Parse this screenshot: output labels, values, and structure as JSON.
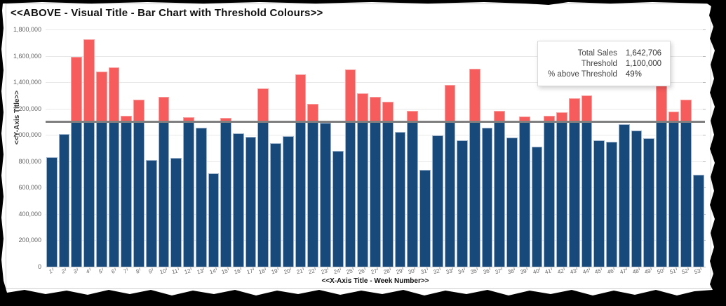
{
  "title": "<<ABOVE - Visual Title - Bar Chart with Threshold Colours>>",
  "colors": {
    "bar_below_threshold": "#17497B",
    "bar_above_threshold": "#F65C5C",
    "threshold_line": "#7F7F7F",
    "gridline": "#E8E8E8",
    "axis_text": "#666666"
  },
  "tooltip": {
    "rows": [
      {
        "label": "Total Sales",
        "value": "1,642,706"
      },
      {
        "label": "Threshold",
        "value": "1,100,000"
      },
      {
        "label": "% above Threshold",
        "value": "49%"
      }
    ]
  },
  "chart_data": {
    "type": "bar",
    "title": "<<ABOVE - Visual Title - Bar Chart with Threshold Colours>>",
    "xlabel": "<<X-Axis Title - Week Number>>",
    "ylabel": "<<Y-Axis Title>>",
    "ylim": [
      0,
      1800000
    ],
    "y_tick_step": 200000,
    "grid": true,
    "legend": false,
    "threshold": 1100000,
    "hovered_category": "50",
    "categories": [
      "1",
      "2",
      "3",
      "4",
      "5",
      "6",
      "7",
      "8",
      "9",
      "10",
      "11",
      "12",
      "13",
      "14",
      "15",
      "16",
      "17",
      "18",
      "19",
      "20",
      "21",
      "22",
      "23",
      "24",
      "25",
      "26",
      "27",
      "28",
      "29",
      "30",
      "31",
      "32",
      "33",
      "34",
      "35",
      "36",
      "37",
      "38",
      "39",
      "40",
      "41",
      "42",
      "43",
      "44",
      "45",
      "46",
      "47",
      "48",
      "49",
      "50",
      "51",
      "52",
      "53"
    ],
    "values": [
      830000,
      1005000,
      1590000,
      1725000,
      1480000,
      1510000,
      1145000,
      1270000,
      810000,
      1290000,
      825000,
      1135000,
      1055000,
      710000,
      1130000,
      1010000,
      985000,
      1355000,
      935000,
      990000,
      1460000,
      1235000,
      1090000,
      880000,
      1495000,
      1315000,
      1290000,
      1250000,
      1025000,
      1185000,
      735000,
      995000,
      1380000,
      960000,
      1500000,
      1055000,
      1185000,
      980000,
      1140000,
      910000,
      1145000,
      1170000,
      1280000,
      1300000,
      960000,
      950000,
      1080000,
      1035000,
      975000,
      1642706,
      1175000,
      1270000,
      700000
    ]
  }
}
